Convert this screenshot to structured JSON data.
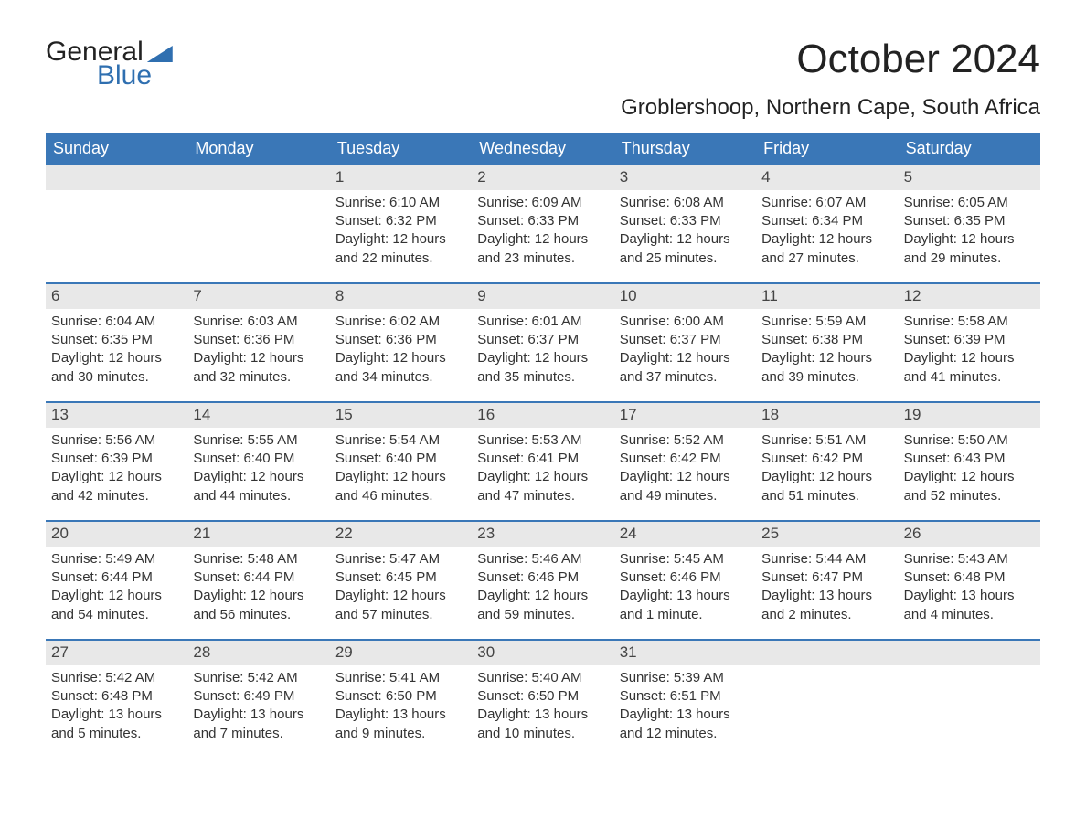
{
  "logo": {
    "word1": "General",
    "word2": "Blue"
  },
  "title": "October 2024",
  "location": "Groblershoop, Northern Cape, South Africa",
  "colors": {
    "brand_blue": "#3a77b7",
    "header_bg": "#3a77b7",
    "daynum_bg": "#e8e8e8",
    "text": "#333333",
    "page_bg": "#ffffff"
  },
  "day_headers": [
    "Sunday",
    "Monday",
    "Tuesday",
    "Wednesday",
    "Thursday",
    "Friday",
    "Saturday"
  ],
  "weeks": [
    [
      {
        "n": "",
        "sunrise": "",
        "sunset": "",
        "daylight": ""
      },
      {
        "n": "",
        "sunrise": "",
        "sunset": "",
        "daylight": ""
      },
      {
        "n": "1",
        "sunrise": "Sunrise: 6:10 AM",
        "sunset": "Sunset: 6:32 PM",
        "daylight": "Daylight: 12 hours and 22 minutes."
      },
      {
        "n": "2",
        "sunrise": "Sunrise: 6:09 AM",
        "sunset": "Sunset: 6:33 PM",
        "daylight": "Daylight: 12 hours and 23 minutes."
      },
      {
        "n": "3",
        "sunrise": "Sunrise: 6:08 AM",
        "sunset": "Sunset: 6:33 PM",
        "daylight": "Daylight: 12 hours and 25 minutes."
      },
      {
        "n": "4",
        "sunrise": "Sunrise: 6:07 AM",
        "sunset": "Sunset: 6:34 PM",
        "daylight": "Daylight: 12 hours and 27 minutes."
      },
      {
        "n": "5",
        "sunrise": "Sunrise: 6:05 AM",
        "sunset": "Sunset: 6:35 PM",
        "daylight": "Daylight: 12 hours and 29 minutes."
      }
    ],
    [
      {
        "n": "6",
        "sunrise": "Sunrise: 6:04 AM",
        "sunset": "Sunset: 6:35 PM",
        "daylight": "Daylight: 12 hours and 30 minutes."
      },
      {
        "n": "7",
        "sunrise": "Sunrise: 6:03 AM",
        "sunset": "Sunset: 6:36 PM",
        "daylight": "Daylight: 12 hours and 32 minutes."
      },
      {
        "n": "8",
        "sunrise": "Sunrise: 6:02 AM",
        "sunset": "Sunset: 6:36 PM",
        "daylight": "Daylight: 12 hours and 34 minutes."
      },
      {
        "n": "9",
        "sunrise": "Sunrise: 6:01 AM",
        "sunset": "Sunset: 6:37 PM",
        "daylight": "Daylight: 12 hours and 35 minutes."
      },
      {
        "n": "10",
        "sunrise": "Sunrise: 6:00 AM",
        "sunset": "Sunset: 6:37 PM",
        "daylight": "Daylight: 12 hours and 37 minutes."
      },
      {
        "n": "11",
        "sunrise": "Sunrise: 5:59 AM",
        "sunset": "Sunset: 6:38 PM",
        "daylight": "Daylight: 12 hours and 39 minutes."
      },
      {
        "n": "12",
        "sunrise": "Sunrise: 5:58 AM",
        "sunset": "Sunset: 6:39 PM",
        "daylight": "Daylight: 12 hours and 41 minutes."
      }
    ],
    [
      {
        "n": "13",
        "sunrise": "Sunrise: 5:56 AM",
        "sunset": "Sunset: 6:39 PM",
        "daylight": "Daylight: 12 hours and 42 minutes."
      },
      {
        "n": "14",
        "sunrise": "Sunrise: 5:55 AM",
        "sunset": "Sunset: 6:40 PM",
        "daylight": "Daylight: 12 hours and 44 minutes."
      },
      {
        "n": "15",
        "sunrise": "Sunrise: 5:54 AM",
        "sunset": "Sunset: 6:40 PM",
        "daylight": "Daylight: 12 hours and 46 minutes."
      },
      {
        "n": "16",
        "sunrise": "Sunrise: 5:53 AM",
        "sunset": "Sunset: 6:41 PM",
        "daylight": "Daylight: 12 hours and 47 minutes."
      },
      {
        "n": "17",
        "sunrise": "Sunrise: 5:52 AM",
        "sunset": "Sunset: 6:42 PM",
        "daylight": "Daylight: 12 hours and 49 minutes."
      },
      {
        "n": "18",
        "sunrise": "Sunrise: 5:51 AM",
        "sunset": "Sunset: 6:42 PM",
        "daylight": "Daylight: 12 hours and 51 minutes."
      },
      {
        "n": "19",
        "sunrise": "Sunrise: 5:50 AM",
        "sunset": "Sunset: 6:43 PM",
        "daylight": "Daylight: 12 hours and 52 minutes."
      }
    ],
    [
      {
        "n": "20",
        "sunrise": "Sunrise: 5:49 AM",
        "sunset": "Sunset: 6:44 PM",
        "daylight": "Daylight: 12 hours and 54 minutes."
      },
      {
        "n": "21",
        "sunrise": "Sunrise: 5:48 AM",
        "sunset": "Sunset: 6:44 PM",
        "daylight": "Daylight: 12 hours and 56 minutes."
      },
      {
        "n": "22",
        "sunrise": "Sunrise: 5:47 AM",
        "sunset": "Sunset: 6:45 PM",
        "daylight": "Daylight: 12 hours and 57 minutes."
      },
      {
        "n": "23",
        "sunrise": "Sunrise: 5:46 AM",
        "sunset": "Sunset: 6:46 PM",
        "daylight": "Daylight: 12 hours and 59 minutes."
      },
      {
        "n": "24",
        "sunrise": "Sunrise: 5:45 AM",
        "sunset": "Sunset: 6:46 PM",
        "daylight": "Daylight: 13 hours and 1 minute."
      },
      {
        "n": "25",
        "sunrise": "Sunrise: 5:44 AM",
        "sunset": "Sunset: 6:47 PM",
        "daylight": "Daylight: 13 hours and 2 minutes."
      },
      {
        "n": "26",
        "sunrise": "Sunrise: 5:43 AM",
        "sunset": "Sunset: 6:48 PM",
        "daylight": "Daylight: 13 hours and 4 minutes."
      }
    ],
    [
      {
        "n": "27",
        "sunrise": "Sunrise: 5:42 AM",
        "sunset": "Sunset: 6:48 PM",
        "daylight": "Daylight: 13 hours and 5 minutes."
      },
      {
        "n": "28",
        "sunrise": "Sunrise: 5:42 AM",
        "sunset": "Sunset: 6:49 PM",
        "daylight": "Daylight: 13 hours and 7 minutes."
      },
      {
        "n": "29",
        "sunrise": "Sunrise: 5:41 AM",
        "sunset": "Sunset: 6:50 PM",
        "daylight": "Daylight: 13 hours and 9 minutes."
      },
      {
        "n": "30",
        "sunrise": "Sunrise: 5:40 AM",
        "sunset": "Sunset: 6:50 PM",
        "daylight": "Daylight: 13 hours and 10 minutes."
      },
      {
        "n": "31",
        "sunrise": "Sunrise: 5:39 AM",
        "sunset": "Sunset: 6:51 PM",
        "daylight": "Daylight: 13 hours and 12 minutes."
      },
      {
        "n": "",
        "sunrise": "",
        "sunset": "",
        "daylight": ""
      },
      {
        "n": "",
        "sunrise": "",
        "sunset": "",
        "daylight": ""
      }
    ]
  ]
}
